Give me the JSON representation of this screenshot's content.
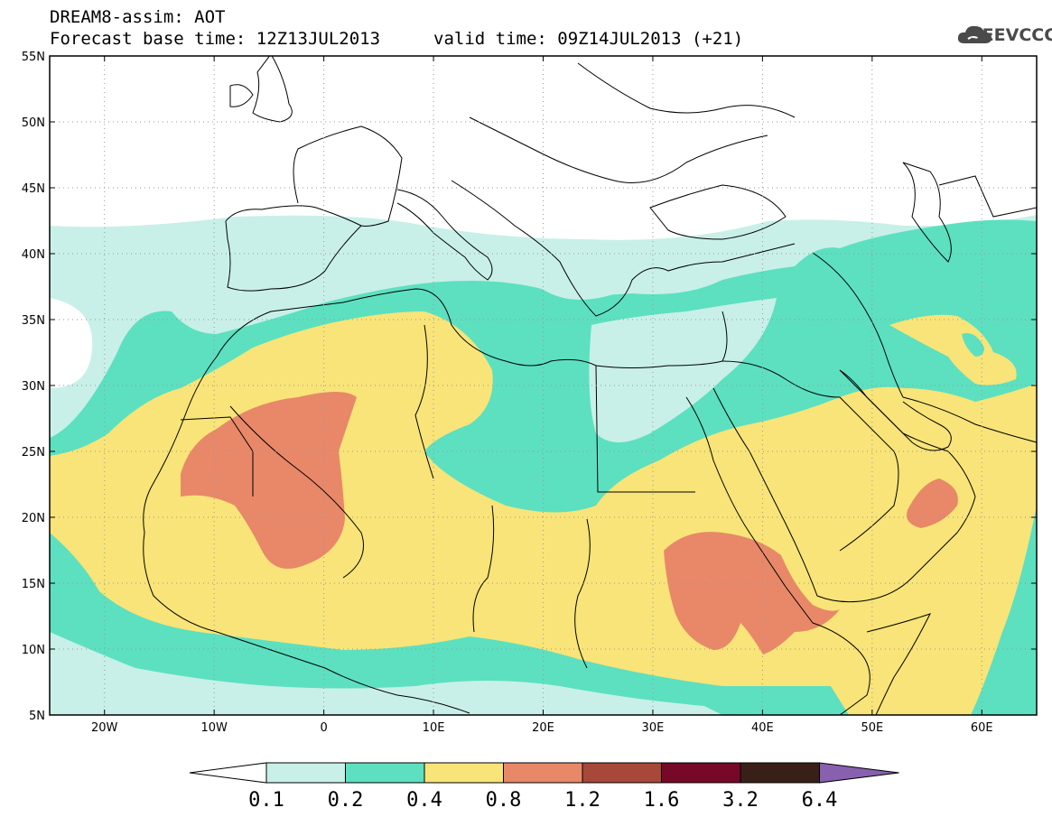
{
  "header": {
    "model_line": "DREAM8-assim: AOT",
    "base_time": "Forecast base time: 12Z13JUL2013",
    "valid_time": "valid time: 09Z14JUL2013 (+21)",
    "logo_text": "SEEVCCC"
  },
  "map": {
    "lon_range": [
      -25,
      65
    ],
    "lat_range": [
      5,
      55
    ],
    "lat_labels": [
      "55N",
      "50N",
      "45N",
      "40N",
      "35N",
      "30N",
      "25N",
      "20N",
      "15N",
      "10N",
      "5N"
    ],
    "lon_labels": [
      "20W",
      "10W",
      "0",
      "10E",
      "20E",
      "30E",
      "40E",
      "50E",
      "60E"
    ],
    "grid": "dotted"
  },
  "legend": {
    "thresholds": [
      "0.1",
      "0.2",
      "0.4",
      "0.8",
      "1.2",
      "1.6",
      "3.2",
      "6.4"
    ],
    "colors": {
      "below": "#ffffff",
      "c1": "#c8f0e8",
      "c2": "#5ce0c0",
      "c3": "#f8e478",
      "c4": "#e88868",
      "c5": "#a84838",
      "c6": "#780828",
      "c7": "#382018",
      "above": "#8860b0"
    }
  },
  "colors": {
    "frame": "#000000",
    "coast": "#000000",
    "ocean": "#ffffff"
  }
}
